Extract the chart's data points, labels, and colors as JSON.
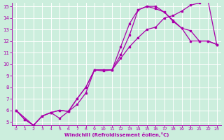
{
  "line1_x": [
    0,
    1,
    2,
    3,
    4,
    5,
    6,
    7,
    8,
    9,
    10,
    11,
    12,
    13,
    14,
    15,
    16,
    17,
    18,
    19,
    20,
    21,
    22,
    23
  ],
  "line1_y": [
    6.0,
    5.2,
    4.7,
    5.5,
    5.8,
    6.0,
    5.9,
    7.0,
    8.0,
    9.5,
    9.5,
    9.5,
    10.5,
    11.5,
    12.3,
    13.0,
    13.2,
    14.0,
    14.2,
    14.6,
    15.1,
    15.3,
    15.5,
    11.7
  ],
  "line2_x": [
    0,
    1,
    2,
    3,
    4,
    5,
    6,
    7,
    8,
    9,
    10,
    11,
    12,
    13,
    14,
    15,
    16,
    17,
    18,
    19,
    20,
    21,
    22,
    23
  ],
  "line2_y": [
    6.0,
    5.2,
    4.7,
    5.5,
    5.8,
    6.0,
    5.9,
    6.5,
    7.5,
    9.5,
    9.4,
    9.5,
    11.5,
    13.5,
    14.7,
    15.0,
    14.8,
    14.5,
    13.7,
    13.1,
    12.0,
    12.0,
    12.0,
    11.7
  ],
  "line3_x": [
    0,
    2,
    3,
    4,
    5,
    6,
    7,
    8,
    9,
    10,
    11,
    12,
    13,
    14,
    15,
    16,
    17,
    18,
    19,
    20,
    21,
    22,
    23
  ],
  "line3_y": [
    6.0,
    4.7,
    5.5,
    5.8,
    5.3,
    5.9,
    7.0,
    8.0,
    9.5,
    9.5,
    9.5,
    10.8,
    12.5,
    14.7,
    15.0,
    15.0,
    14.5,
    13.8,
    13.1,
    12.9,
    12.0,
    12.0,
    11.7
  ],
  "color": "#aa00aa",
  "bg_color": "#cceedd",
  "xlabel": "Windchill (Refroidissement éolien,°C)",
  "ylim": [
    5,
    15
  ],
  "xlim": [
    0,
    23
  ],
  "yticks": [
    5,
    6,
    7,
    8,
    9,
    10,
    11,
    12,
    13,
    14,
    15
  ],
  "xticks": [
    0,
    1,
    2,
    3,
    4,
    5,
    6,
    7,
    8,
    9,
    10,
    11,
    12,
    13,
    14,
    15,
    16,
    17,
    18,
    19,
    20,
    21,
    22,
    23
  ]
}
